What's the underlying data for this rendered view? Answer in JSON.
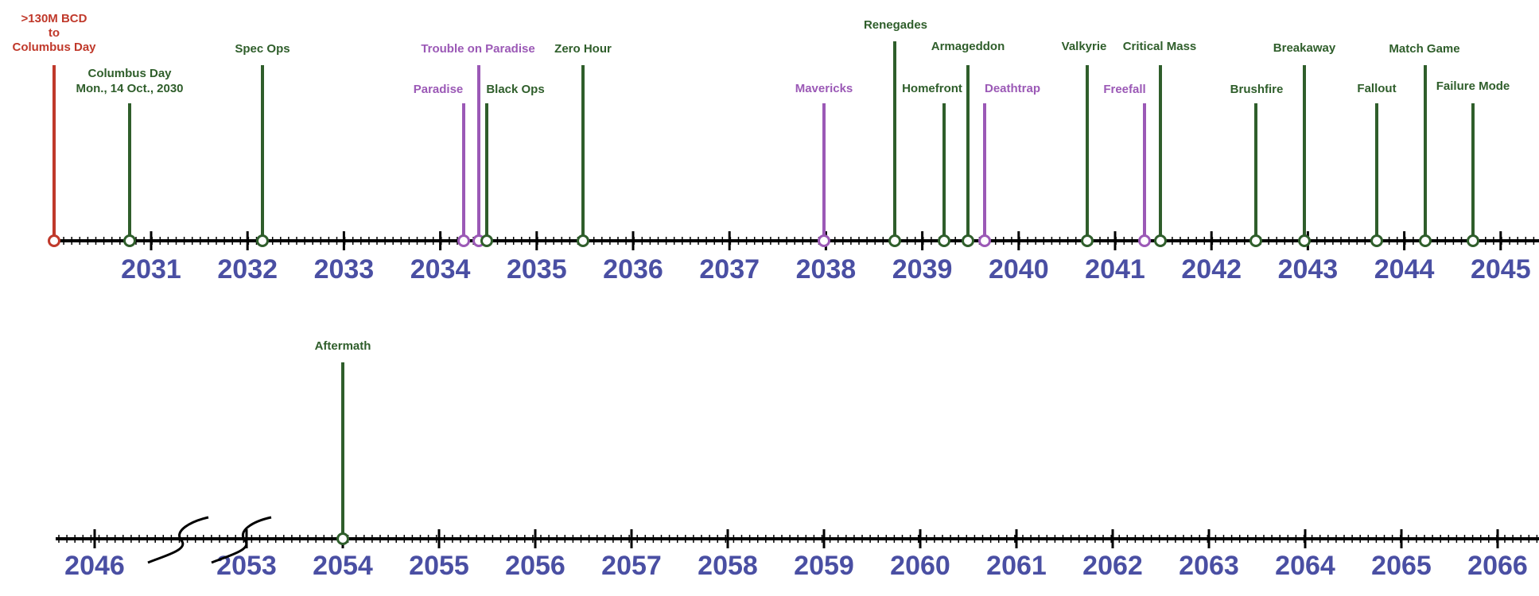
{
  "colors": {
    "green": "#2f5e2b",
    "purple": "#9b59b6",
    "red": "#c0392b",
    "year_label": "#4a4fa3",
    "axis": "#000000"
  },
  "rows": [
    {
      "years": [
        "2031",
        "2032",
        "2033",
        "2034",
        "2035",
        "2036",
        "2037",
        "2038",
        "2039",
        "2040",
        "2041",
        "2042",
        "2043",
        "2044",
        "2045"
      ]
    },
    {
      "years": [
        "2046",
        "2053",
        "2054",
        "2055",
        "2056",
        "2057",
        "2058",
        "2059",
        "2060",
        "2061",
        "2062",
        "2063",
        "2064",
        "2065",
        "2066"
      ]
    }
  ],
  "events": [
    {
      "label": ">130M BCD\nto\nColumbus Day",
      "color": "red"
    },
    {
      "label": "Columbus Day\nMon., 14 Oct., 2030",
      "color": "green"
    },
    {
      "label": "Spec Ops",
      "color": "green"
    },
    {
      "label": "Paradise",
      "color": "purple"
    },
    {
      "label": "Trouble on Paradise",
      "color": "purple"
    },
    {
      "label": "Black Ops",
      "color": "green"
    },
    {
      "label": "Zero Hour",
      "color": "green"
    },
    {
      "label": "Mavericks",
      "color": "purple"
    },
    {
      "label": "Renegades",
      "color": "green"
    },
    {
      "label": "Homefront",
      "color": "green"
    },
    {
      "label": "Armageddon",
      "color": "green"
    },
    {
      "label": "Deathtrap",
      "color": "purple"
    },
    {
      "label": "Valkyrie",
      "color": "green"
    },
    {
      "label": "Freefall",
      "color": "purple"
    },
    {
      "label": "Critical Mass",
      "color": "green"
    },
    {
      "label": "Brushfire",
      "color": "green"
    },
    {
      "label": "Breakaway",
      "color": "green"
    },
    {
      "label": "Fallout",
      "color": "green"
    },
    {
      "label": "Match Game",
      "color": "green"
    },
    {
      "label": "Failure Mode",
      "color": "green"
    },
    {
      "label": "Aftermath",
      "color": "green"
    }
  ]
}
